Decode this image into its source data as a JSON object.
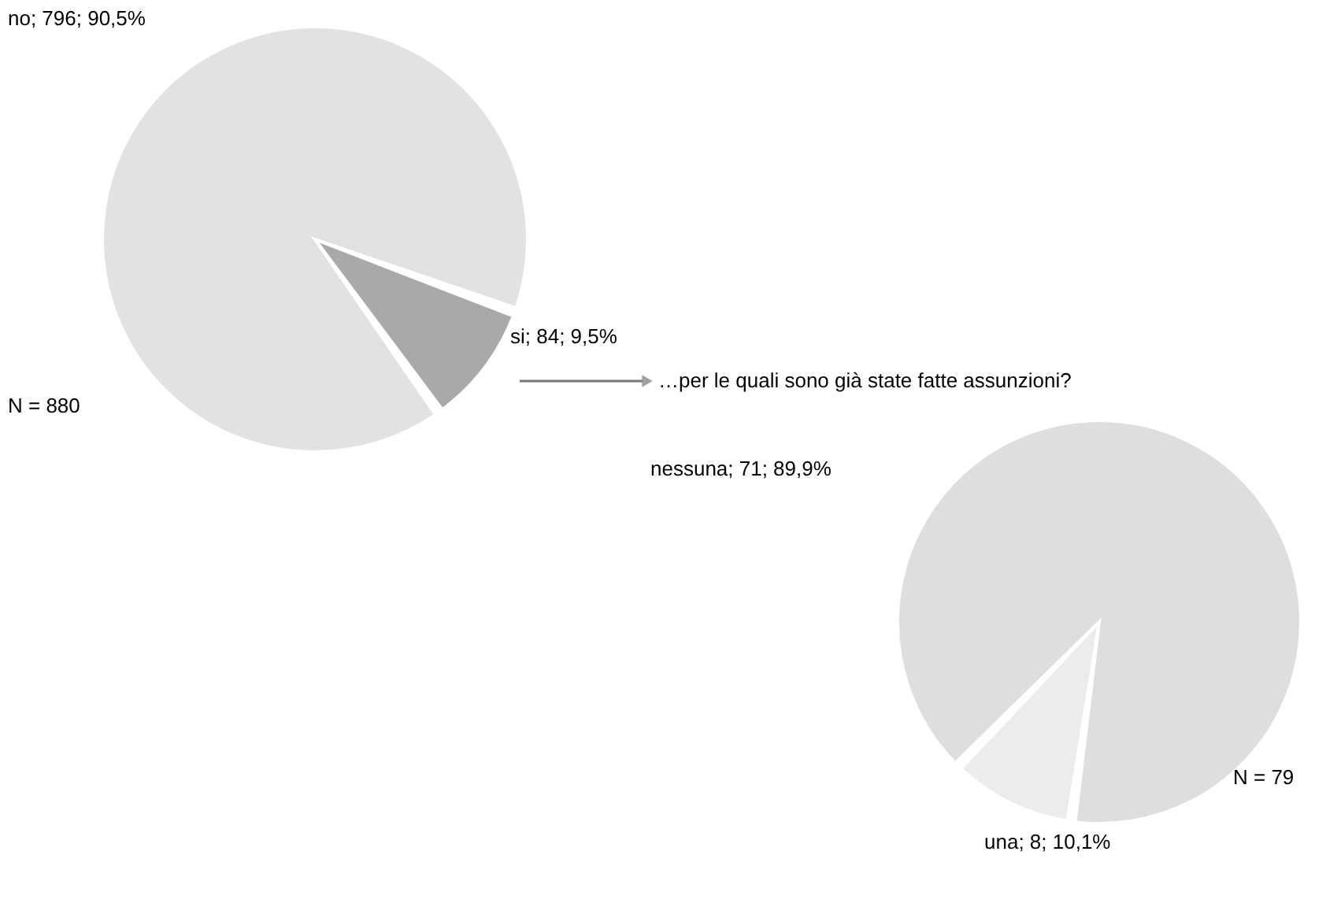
{
  "chart_data": [
    {
      "type": "pie",
      "categories": [
        "si",
        "no"
      ],
      "values": [
        84,
        796
      ],
      "colors": [
        "#a9a9a9",
        "#e2e2e2"
      ],
      "value_labels": [
        "84; 9,5%",
        "796; 90,5%"
      ],
      "annotations": [
        "N = 880"
      ]
    },
    {
      "type": "pie",
      "title": "…per le quali sono già state fatte assunzioni?",
      "categories": [
        "una",
        "nessuna"
      ],
      "values": [
        8,
        71
      ],
      "colors": [
        "#ececec",
        "#dedede"
      ],
      "value_labels": [
        "8; 10,1%",
        "71; 89,9%"
      ],
      "annotations": [
        "N = 79"
      ]
    }
  ]
}
